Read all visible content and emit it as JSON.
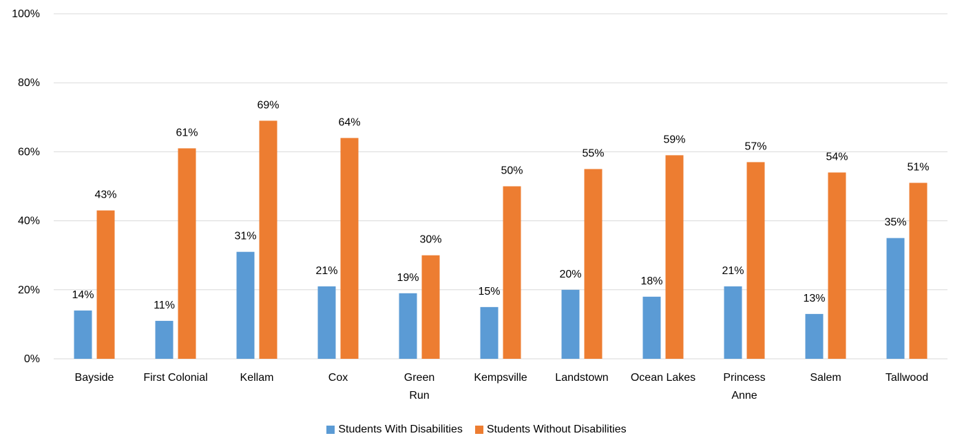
{
  "chart_data": {
    "type": "bar",
    "title": "",
    "xlabel": "",
    "ylabel": "",
    "ylim": [
      0,
      100
    ],
    "yticks": [
      "0%",
      "20%",
      "40%",
      "60%",
      "80%",
      "100%"
    ],
    "ytick_values": [
      0,
      20,
      40,
      60,
      80,
      100
    ],
    "grid": true,
    "legend_position": "bottom",
    "categories": [
      [
        "Bayside"
      ],
      [
        "First Colonial"
      ],
      [
        "Kellam"
      ],
      [
        "Cox"
      ],
      [
        "Green",
        "Run"
      ],
      [
        "Kempsville"
      ],
      [
        "Landstown"
      ],
      [
        "Ocean Lakes"
      ],
      [
        "Princess",
        "Anne"
      ],
      [
        "Salem"
      ],
      [
        "Tallwood"
      ]
    ],
    "series": [
      {
        "name": "Students With Disabilities",
        "color": "#5B9BD5",
        "values": [
          14,
          11,
          31,
          21,
          19,
          15,
          20,
          18,
          21,
          13,
          35
        ],
        "labels": [
          "14%",
          "11%",
          "31%",
          "21%",
          "19%",
          "15%",
          "20%",
          "18%",
          "21%",
          "13%",
          "35%"
        ]
      },
      {
        "name": "Students Without Disabilities",
        "color": "#ED7D31",
        "values": [
          43,
          61,
          69,
          64,
          30,
          50,
          55,
          59,
          57,
          54,
          51
        ],
        "labels": [
          "43%",
          "61%",
          "69%",
          "64%",
          "30%",
          "50%",
          "55%",
          "59%",
          "57%",
          "54%",
          "51%"
        ]
      }
    ]
  }
}
